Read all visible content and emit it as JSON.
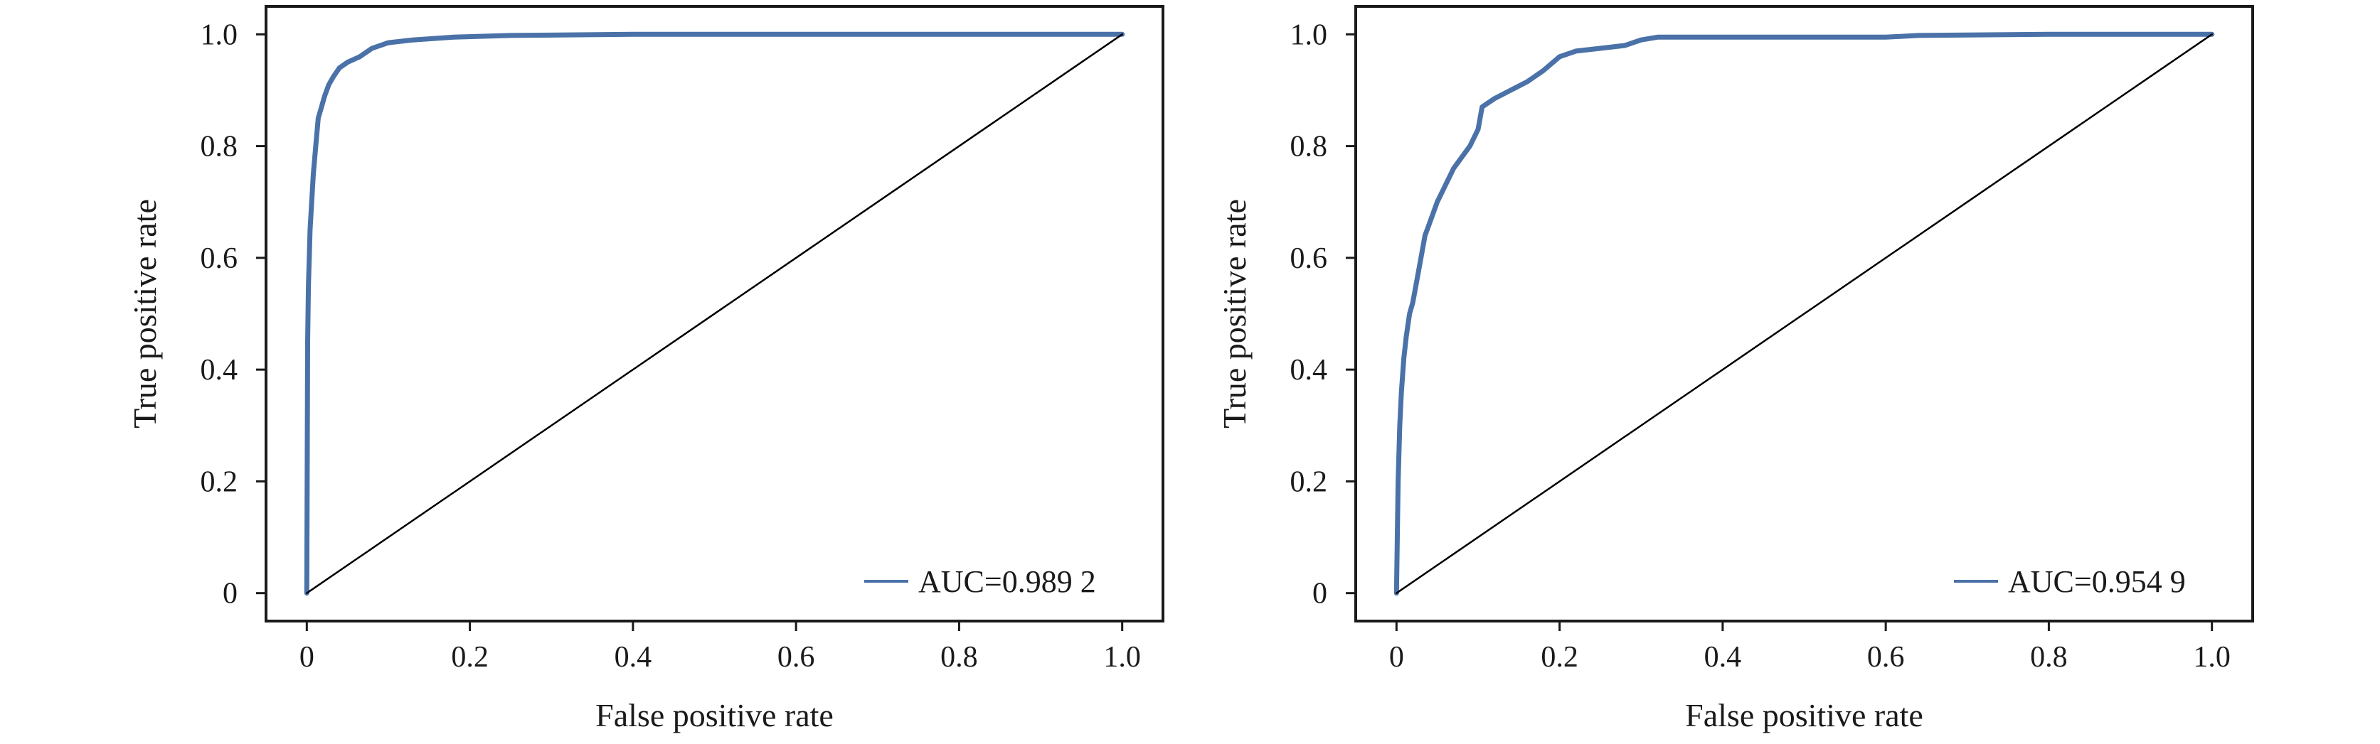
{
  "colors": {
    "roc": "#4a72a8",
    "diagonal": "#000000",
    "axes": "#1a1a1a"
  },
  "chart_data": [
    {
      "type": "line",
      "title": "",
      "xlabel": "False positive rate",
      "ylabel": "True positive rate",
      "xlim": [
        -0.05,
        1.05
      ],
      "ylim": [
        -0.05,
        1.05
      ],
      "xticks": [
        0,
        0.2,
        0.4,
        0.6,
        0.8,
        1.0
      ],
      "xtick_labels": [
        "0",
        "0.2",
        "0.4",
        "0.6",
        "0.8",
        "1.0"
      ],
      "yticks": [
        0,
        0.2,
        0.4,
        0.6,
        0.8,
        1.0
      ],
      "ytick_labels": [
        "0",
        "0.2",
        "0.4",
        "0.6",
        "0.8",
        "1.0"
      ],
      "grid": false,
      "legend_position": "bottom-right",
      "series": [
        {
          "name": "AUC=0.989 2",
          "x": [
            0,
            0.001,
            0.002,
            0.003,
            0.004,
            0.006,
            0.008,
            0.011,
            0.014,
            0.018,
            0.022,
            0.027,
            0.033,
            0.04,
            0.05,
            0.065,
            0.08,
            0.1,
            0.13,
            0.18,
            0.25,
            0.4,
            0.6,
            0.8,
            1.0
          ],
          "y": [
            0,
            0.45,
            0.55,
            0.6,
            0.65,
            0.7,
            0.75,
            0.8,
            0.85,
            0.87,
            0.89,
            0.91,
            0.925,
            0.94,
            0.95,
            0.96,
            0.975,
            0.985,
            0.99,
            0.995,
            0.998,
            1.0,
            1.0,
            1.0,
            1.0
          ]
        },
        {
          "name": "reference",
          "x": [
            0,
            1
          ],
          "y": [
            0,
            1
          ]
        }
      ]
    },
    {
      "type": "line",
      "title": "",
      "xlabel": "False positive rate",
      "ylabel": "True positive rate",
      "xlim": [
        -0.05,
        1.05
      ],
      "ylim": [
        -0.05,
        1.05
      ],
      "xticks": [
        0,
        0.2,
        0.4,
        0.6,
        0.8,
        1.0
      ],
      "xtick_labels": [
        "0",
        "0.2",
        "0.4",
        "0.6",
        "0.8",
        "1.0"
      ],
      "yticks": [
        0,
        0.2,
        0.4,
        0.6,
        0.8,
        1.0
      ],
      "ytick_labels": [
        "0",
        "0.2",
        "0.4",
        "0.6",
        "0.8",
        "1.0"
      ],
      "grid": false,
      "legend_position": "bottom-right",
      "series": [
        {
          "name": "AUC=0.954 9",
          "x": [
            0,
            0.002,
            0.004,
            0.006,
            0.009,
            0.012,
            0.016,
            0.02,
            0.025,
            0.03,
            0.035,
            0.04,
            0.05,
            0.06,
            0.07,
            0.08,
            0.09,
            0.1,
            0.105,
            0.12,
            0.14,
            0.16,
            0.18,
            0.2,
            0.22,
            0.25,
            0.28,
            0.3,
            0.32,
            0.4,
            0.5,
            0.6,
            0.64,
            0.8,
            1.0
          ],
          "y": [
            0,
            0.2,
            0.3,
            0.36,
            0.42,
            0.46,
            0.5,
            0.52,
            0.56,
            0.6,
            0.64,
            0.66,
            0.7,
            0.73,
            0.76,
            0.78,
            0.8,
            0.83,
            0.87,
            0.885,
            0.9,
            0.915,
            0.935,
            0.96,
            0.97,
            0.975,
            0.98,
            0.99,
            0.995,
            0.995,
            0.995,
            0.995,
            0.998,
            1.0,
            1.0
          ]
        },
        {
          "name": "reference",
          "x": [
            0,
            1
          ],
          "y": [
            0,
            1
          ]
        }
      ]
    }
  ]
}
